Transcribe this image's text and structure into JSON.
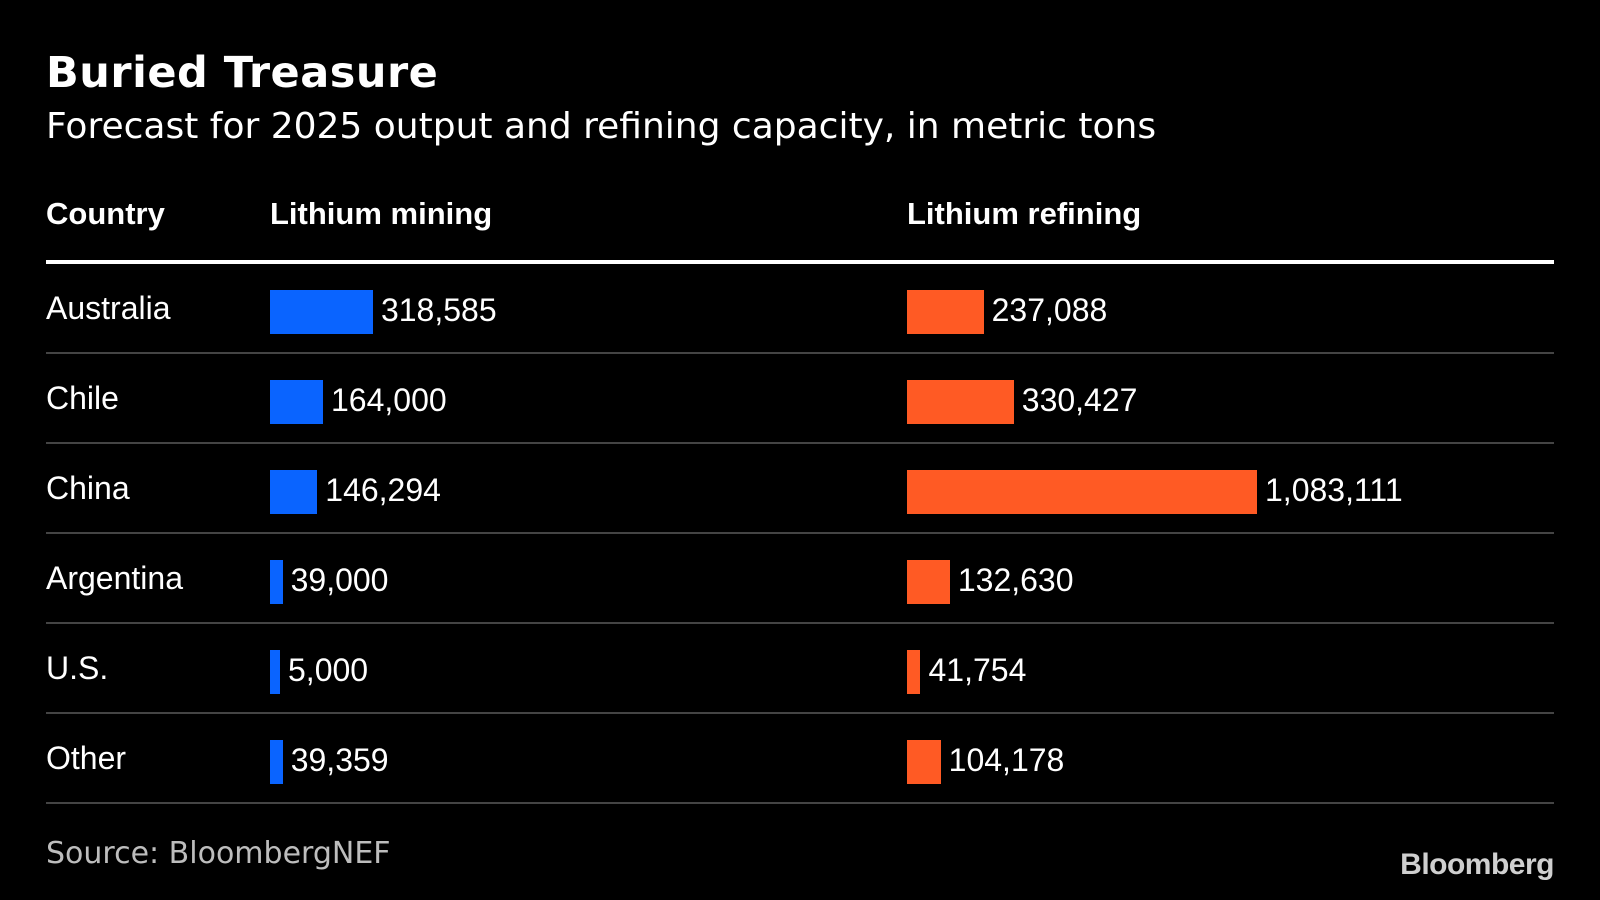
{
  "title": "Buried Treasure",
  "subtitle": "Forecast for 2025 output and refining capacity, in metric tons",
  "headers": {
    "country": "Country",
    "mining": "Lithium mining",
    "refining": "Lithium refining"
  },
  "source": "Source: BloombergNEF",
  "logo": "Bloomberg",
  "colors": {
    "background": "#000000",
    "mining": "#0a64ff",
    "refining": "#ff5a24",
    "divider": "#444444"
  },
  "chart_data": {
    "type": "bar",
    "categories": [
      "Australia",
      "Chile",
      "China",
      "Argentina",
      "U.S.",
      "Other"
    ],
    "series": [
      {
        "name": "Lithium mining",
        "values": [
          318585,
          164000,
          146294,
          39000,
          5000,
          39359
        ],
        "labels": [
          "318,585",
          "164,000",
          "146,294",
          "39,000",
          "5,000",
          "39,359"
        ]
      },
      {
        "name": "Lithium refining",
        "values": [
          237088,
          330427,
          1083111,
          132630,
          41754,
          104178
        ],
        "labels": [
          "237,088",
          "330,427",
          "1,083,111",
          "132,630",
          "41,754",
          "104,178"
        ]
      }
    ]
  }
}
